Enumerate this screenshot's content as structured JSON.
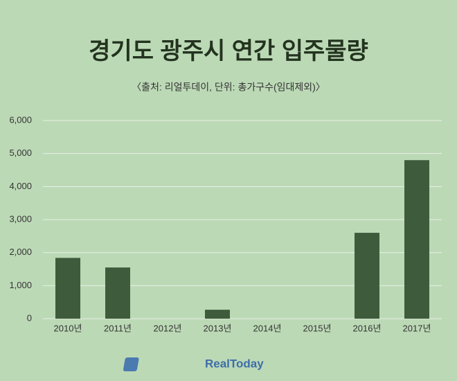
{
  "chart_data": {
    "type": "bar",
    "title": "경기도 광주시 연간 입주물량",
    "subtitle": "〈출처: 리얼투데이, 단위: 총가구수(임대제외)〉",
    "categories": [
      "2010년",
      "2011년",
      "2012년",
      "2013년",
      "2014년",
      "2015년",
      "2016년",
      "2017년"
    ],
    "values": [
      1840,
      1550,
      0,
      270,
      0,
      0,
      2600,
      4800
    ],
    "color": "#3e5b3b",
    "ylim": [
      0,
      6000
    ],
    "yticks": [
      0,
      {
        "value": 1000,
        "label": "1,000"
      },
      {
        "value": 2000,
        "label": "2,000"
      },
      {
        "value": 3000,
        "label": "3,000"
      },
      {
        "value": 4000,
        "label": "4,000"
      },
      {
        "value": 5000,
        "label": "5,000"
      },
      {
        "value": 6000,
        "label": "6,000"
      }
    ],
    "grid": true,
    "logo": "RealToday"
  }
}
